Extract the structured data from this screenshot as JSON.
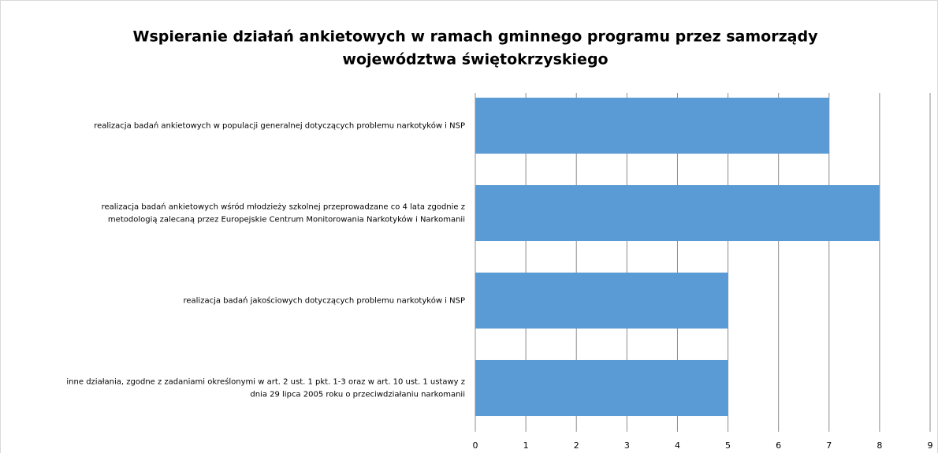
{
  "chart_data": {
    "type": "barh",
    "title": "Wspieranie działań ankietowych w ramach gminnego programu  przez samorządy\nwojewództwa świętokrzyskiego",
    "categories": [
      "realizacja badań ankietowych  w populacji generalnej dotyczących problemu narkotyków i NSP",
      "realizacja badań ankietowych wśród młodzieży szkolnej przeprowadzane co 4 lata zgodnie z\nmetodologią zalecaną przez Europejskie Centrum Monitorowania  Narkotyków  i Narkomanii",
      "realizacja badań jakościowych  dotyczących problemu narkotyków i NSP",
      "inne działania,  zgodne z zadaniami  określonymi w art. 2 ust. 1 pkt. 1-3 oraz w art. 10 ust. 1 ustawy z\ndnia 29 lipca 2005 roku o przeciwdziałaniu narkomanii"
    ],
    "values": [
      7,
      8,
      5,
      5
    ],
    "color": "#5b9bd5",
    "xlim": [
      0,
      9
    ],
    "xticks": [
      0,
      1,
      2,
      3,
      4,
      5,
      6,
      7,
      8,
      9
    ],
    "grid": true
  }
}
